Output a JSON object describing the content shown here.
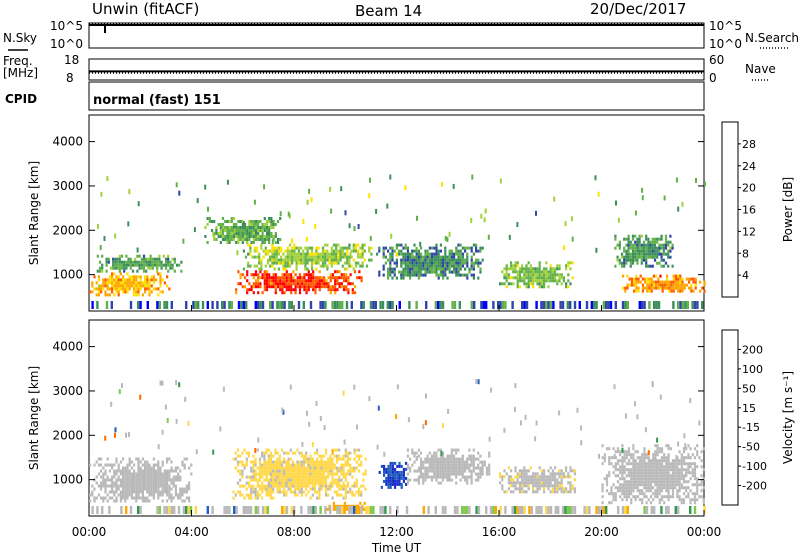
{
  "header": {
    "station": "Unwin (fitACF)",
    "beam": "Beam 14",
    "date": "20/Dec/2017"
  },
  "side_labels": {
    "nsky": "N.Sky",
    "freq_line1": "Freq.",
    "freq_line2": "[MHz]",
    "cpid": "CPID",
    "nsearch": "N.Search",
    "nave": "Nave"
  },
  "cpid_text": "normal (fast) 151",
  "colors": {
    "power": [
      "#0000ff",
      "#2f46a8",
      "#3b8f5a",
      "#62b049",
      "#a3d13d",
      "#ffe100",
      "#ffa500",
      "#ff5a00",
      "#ff0000"
    ],
    "velocity": [
      "#ff0000",
      "#ff6a00",
      "#ffa500",
      "#ffd84a",
      "#c0c0c0",
      "#7fc94a",
      "#2e9a4d",
      "#1f5fbf",
      "#1a2fc9"
    ],
    "ground_scatter": "#b9b9b9"
  },
  "chart_data": [
    {
      "type": "line",
      "name": "noise-panel",
      "left_ticks": [
        "10^5",
        "10^0"
      ],
      "right_ticks": [
        "10^5",
        "10^0"
      ],
      "sky_level_log": 4.6,
      "search_level_log": 4.8
    },
    {
      "type": "line",
      "name": "freq-nave-panel",
      "left_ticks": [
        "18",
        "8"
      ],
      "right_ticks": [
        "60",
        "0"
      ],
      "freq_mhz": 12.1,
      "nave": 20
    },
    {
      "type": "heatmap",
      "name": "power-panel",
      "ylabel": "Slant Range [km]",
      "yticks": [
        "1000",
        "2000",
        "3000",
        "4000"
      ],
      "ylim": [
        180,
        4600
      ],
      "xlim": [
        0,
        24
      ],
      "colorbar_label": "Power [dB]",
      "colorbar_ticks": [
        "4",
        "8",
        "12",
        "16",
        "20",
        "24",
        "28"
      ],
      "colorbar_range": [
        0,
        32
      ],
      "echo_regions": [
        {
          "t": [
            0.0,
            3.1
          ],
          "r": [
            550,
            1050
          ],
          "db": 22
        },
        {
          "t": [
            0.3,
            3.6
          ],
          "r": [
            1100,
            1450
          ],
          "db": 11
        },
        {
          "t": [
            5.7,
            10.6
          ],
          "r": [
            600,
            1100
          ],
          "db": 28
        },
        {
          "t": [
            6.0,
            11.0
          ],
          "r": [
            1150,
            1700
          ],
          "db": 15
        },
        {
          "t": [
            4.5,
            7.5
          ],
          "r": [
            1700,
            2300
          ],
          "db": 12
        },
        {
          "t": [
            11.2,
            15.4
          ],
          "r": [
            900,
            1700
          ],
          "db": 9
        },
        {
          "t": [
            16.0,
            18.9
          ],
          "r": [
            700,
            1300
          ],
          "db": 14
        },
        {
          "t": [
            20.8,
            24.0
          ],
          "r": [
            600,
            1000
          ],
          "db": 24
        },
        {
          "t": [
            20.5,
            22.8
          ],
          "r": [
            1200,
            1900
          ],
          "db": 10
        }
      ]
    },
    {
      "type": "heatmap",
      "name": "velocity-panel",
      "ylabel": "Slant Range [km]",
      "yticks": [
        "1000",
        "2000",
        "3000",
        "4000"
      ],
      "ylim": [
        180,
        4600
      ],
      "xlim": [
        0,
        24
      ],
      "xlabel": "Time UT",
      "xticks": [
        "00:00",
        "04:00",
        "08:00",
        "12:00",
        "16:00",
        "20:00",
        "00:00"
      ],
      "colorbar_label": "Velocity [m s⁻¹]",
      "colorbar_ticks": [
        "-200",
        "-100",
        "-50",
        "-15",
        "15",
        "50",
        "100",
        "200"
      ],
      "echo_regions": [
        {
          "t": [
            0.0,
            4.0
          ],
          "r": [
            500,
            1500
          ],
          "v": 0
        },
        {
          "t": [
            5.6,
            10.8
          ],
          "r": [
            600,
            1700
          ],
          "v": -20
        },
        {
          "t": [
            11.3,
            12.4
          ],
          "r": [
            800,
            1400
          ],
          "v": 200
        },
        {
          "t": [
            12.4,
            15.6
          ],
          "r": [
            900,
            1700
          ],
          "v": 0
        },
        {
          "t": [
            16.0,
            19.0
          ],
          "r": [
            700,
            1300
          ],
          "v": -10
        },
        {
          "t": [
            20.0,
            24.0
          ],
          "r": [
            500,
            1800
          ],
          "v": 0
        },
        {
          "t": [
            9.0,
            10.8
          ],
          "r": [
            300,
            500
          ],
          "v": -80
        }
      ]
    }
  ]
}
